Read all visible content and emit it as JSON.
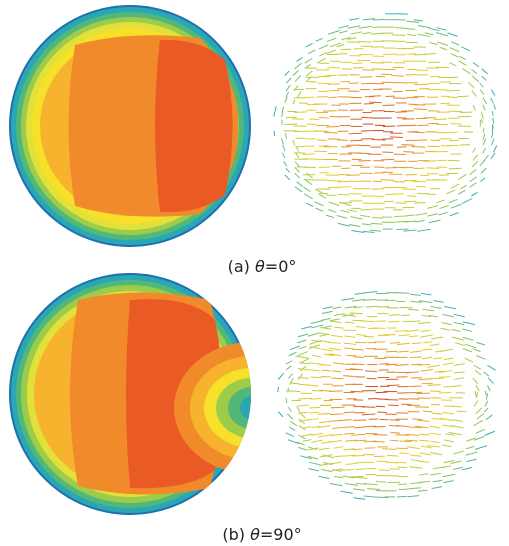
{
  "figure": {
    "panels": [
      {
        "label": "(a)",
        "variable": "θ",
        "angle": "=0°"
      },
      {
        "label": "(b)",
        "variable": "θ",
        "angle": "=90°"
      }
    ]
  }
}
